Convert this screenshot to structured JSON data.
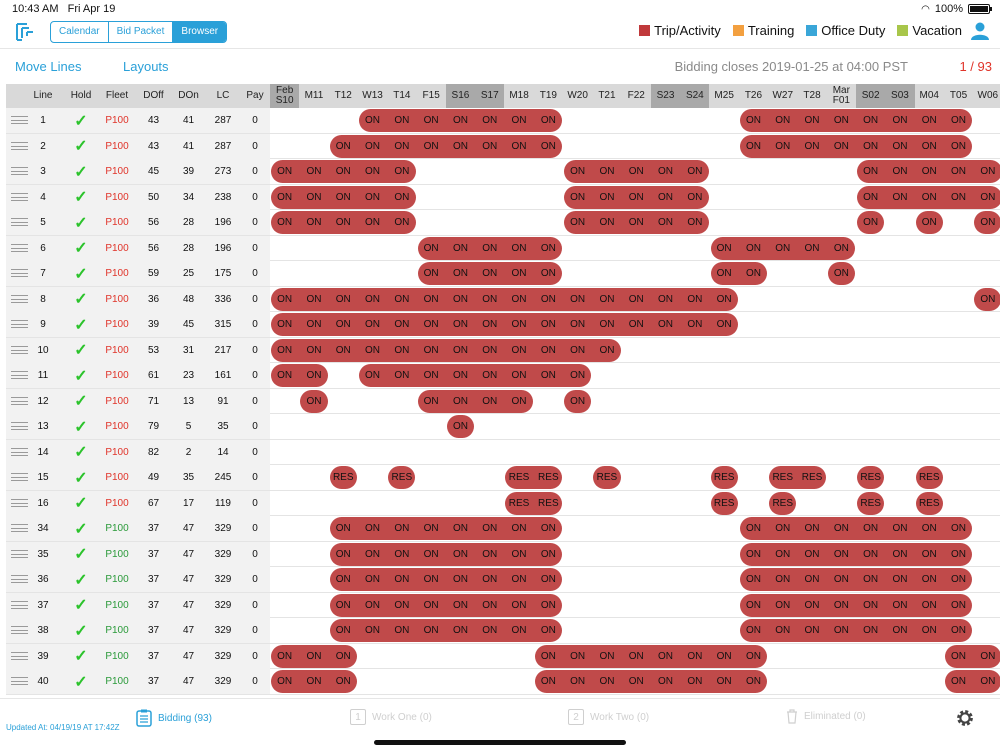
{
  "status": {
    "time": "10:43 AM",
    "date": "Fri Apr 19",
    "battery": "100%"
  },
  "toolbar": {
    "tabs": [
      "Calendar",
      "Bid Packet",
      "Browser"
    ],
    "active_tab": "Browser",
    "legend": [
      {
        "label": "Trip/Activity",
        "color": "#c0393b"
      },
      {
        "label": "Training",
        "color": "#f3a040"
      },
      {
        "label": "Office Duty",
        "color": "#3aa6d8"
      },
      {
        "label": "Vacation",
        "color": "#a8c64a"
      }
    ]
  },
  "subbar": {
    "move_lines": "Move Lines",
    "layouts": "Layouts",
    "closes": "Bidding closes 2019-01-25 at 04:00 PST",
    "page": "1 / 93"
  },
  "grid": {
    "columns": [
      "Line",
      "Hold",
      "Fleet",
      "DOff",
      "DOn",
      "LC",
      "Pay"
    ],
    "days": [
      {
        "top": "Feb",
        "label": "S10",
        "weekend": true
      },
      {
        "label": "M11"
      },
      {
        "label": "T12"
      },
      {
        "label": "W13"
      },
      {
        "label": "T14"
      },
      {
        "label": "F15"
      },
      {
        "label": "S16",
        "weekend": true
      },
      {
        "label": "S17",
        "weekend": true
      },
      {
        "label": "M18"
      },
      {
        "label": "T19"
      },
      {
        "label": "W20"
      },
      {
        "label": "T21"
      },
      {
        "label": "F22"
      },
      {
        "label": "S23",
        "weekend": true
      },
      {
        "label": "S24",
        "weekend": true
      },
      {
        "label": "M25"
      },
      {
        "label": "T26"
      },
      {
        "label": "W27"
      },
      {
        "label": "T28"
      },
      {
        "top": "Mar",
        "label": "F01"
      },
      {
        "label": "S02",
        "weekend": true
      },
      {
        "label": "S03",
        "weekend": true
      },
      {
        "label": "M04"
      },
      {
        "label": "T05"
      },
      {
        "label": "W06"
      }
    ],
    "on_text": "ON",
    "res_text": "RES",
    "rows": [
      {
        "line": "1",
        "fleet": "P100",
        "fleet_color": "red",
        "doff": "43",
        "don": "41",
        "lc": "287",
        "pay": "0",
        "on": "3-9,16-23",
        "res": ""
      },
      {
        "line": "2",
        "fleet": "P100",
        "fleet_color": "red",
        "doff": "43",
        "don": "41",
        "lc": "287",
        "pay": "0",
        "on": "2-9,16-23",
        "res": ""
      },
      {
        "line": "3",
        "fleet": "P100",
        "fleet_color": "red",
        "doff": "45",
        "don": "39",
        "lc": "273",
        "pay": "0",
        "on": "0-4,10-14,20-24",
        "res": ""
      },
      {
        "line": "4",
        "fleet": "P100",
        "fleet_color": "red",
        "doff": "50",
        "don": "34",
        "lc": "238",
        "pay": "0",
        "on": "0-4,10-14,20-24",
        "res": ""
      },
      {
        "line": "5",
        "fleet": "P100",
        "fleet_color": "red",
        "doff": "56",
        "don": "28",
        "lc": "196",
        "pay": "0",
        "on": "0-4,10-14,20,22,24",
        "res": ""
      },
      {
        "line": "6",
        "fleet": "P100",
        "fleet_color": "red",
        "doff": "56",
        "don": "28",
        "lc": "196",
        "pay": "0",
        "on": "5-9,15-19",
        "res": ""
      },
      {
        "line": "7",
        "fleet": "P100",
        "fleet_color": "red",
        "doff": "59",
        "don": "25",
        "lc": "175",
        "pay": "0",
        "on": "5-9,15-16,19",
        "res": ""
      },
      {
        "line": "8",
        "fleet": "P100",
        "fleet_color": "red",
        "doff": "36",
        "don": "48",
        "lc": "336",
        "pay": "0",
        "on": "0-15,24",
        "res": ""
      },
      {
        "line": "9",
        "fleet": "P100",
        "fleet_color": "red",
        "doff": "39",
        "don": "45",
        "lc": "315",
        "pay": "0",
        "on": "0-15",
        "res": ""
      },
      {
        "line": "10",
        "fleet": "P100",
        "fleet_color": "red",
        "doff": "53",
        "don": "31",
        "lc": "217",
        "pay": "0",
        "on": "0-11",
        "res": ""
      },
      {
        "line": "11",
        "fleet": "P100",
        "fleet_color": "red",
        "doff": "61",
        "don": "23",
        "lc": "161",
        "pay": "0",
        "on": "0-1,3-10",
        "res": ""
      },
      {
        "line": "12",
        "fleet": "P100",
        "fleet_color": "red",
        "doff": "71",
        "don": "13",
        "lc": "91",
        "pay": "0",
        "on": "1,5-8,10",
        "res": ""
      },
      {
        "line": "13",
        "fleet": "P100",
        "fleet_color": "red",
        "doff": "79",
        "don": "5",
        "lc": "35",
        "pay": "0",
        "on": "6",
        "res": ""
      },
      {
        "line": "14",
        "fleet": "P100",
        "fleet_color": "red",
        "doff": "82",
        "don": "2",
        "lc": "14",
        "pay": "0",
        "on": "",
        "res": ""
      },
      {
        "line": "15",
        "fleet": "P100",
        "fleet_color": "red",
        "doff": "49",
        "don": "35",
        "lc": "245",
        "pay": "0",
        "on": "",
        "res": "2,4,8-9,11,15,17-18,20,22"
      },
      {
        "line": "16",
        "fleet": "P100",
        "fleet_color": "red",
        "doff": "67",
        "don": "17",
        "lc": "119",
        "pay": "0",
        "on": "",
        "res": "8-9,15,17,20,22"
      },
      {
        "line": "34",
        "fleet": "P100",
        "fleet_color": "green",
        "doff": "37",
        "don": "47",
        "lc": "329",
        "pay": "0",
        "on": "2-9,16-23",
        "res": ""
      },
      {
        "line": "35",
        "fleet": "P100",
        "fleet_color": "green",
        "doff": "37",
        "don": "47",
        "lc": "329",
        "pay": "0",
        "on": "2-9,16-23",
        "res": ""
      },
      {
        "line": "36",
        "fleet": "P100",
        "fleet_color": "green",
        "doff": "37",
        "don": "47",
        "lc": "329",
        "pay": "0",
        "on": "2-9,16-23",
        "res": ""
      },
      {
        "line": "37",
        "fleet": "P100",
        "fleet_color": "green",
        "doff": "37",
        "don": "47",
        "lc": "329",
        "pay": "0",
        "on": "2-9,16-23",
        "res": ""
      },
      {
        "line": "38",
        "fleet": "P100",
        "fleet_color": "green",
        "doff": "37",
        "don": "47",
        "lc": "329",
        "pay": "0",
        "on": "2-9,16-23",
        "res": ""
      },
      {
        "line": "39",
        "fleet": "P100",
        "fleet_color": "green",
        "doff": "37",
        "don": "47",
        "lc": "329",
        "pay": "0",
        "on": "0-2,9-16,23-24",
        "res": ""
      },
      {
        "line": "40",
        "fleet": "P100",
        "fleet_color": "green",
        "doff": "37",
        "don": "47",
        "lc": "329",
        "pay": "0",
        "on": "0-2,9-16,23-24",
        "res": ""
      }
    ]
  },
  "bottom": {
    "updated": "Updated At: 04/19/19 AT 17:42Z",
    "tabs": [
      {
        "label": "Bidding (93)",
        "active": true
      },
      {
        "label": "Work One (0)",
        "num": "1"
      },
      {
        "label": "Work Two (0)",
        "num": "2"
      },
      {
        "label": "Eliminated (0)"
      }
    ]
  }
}
